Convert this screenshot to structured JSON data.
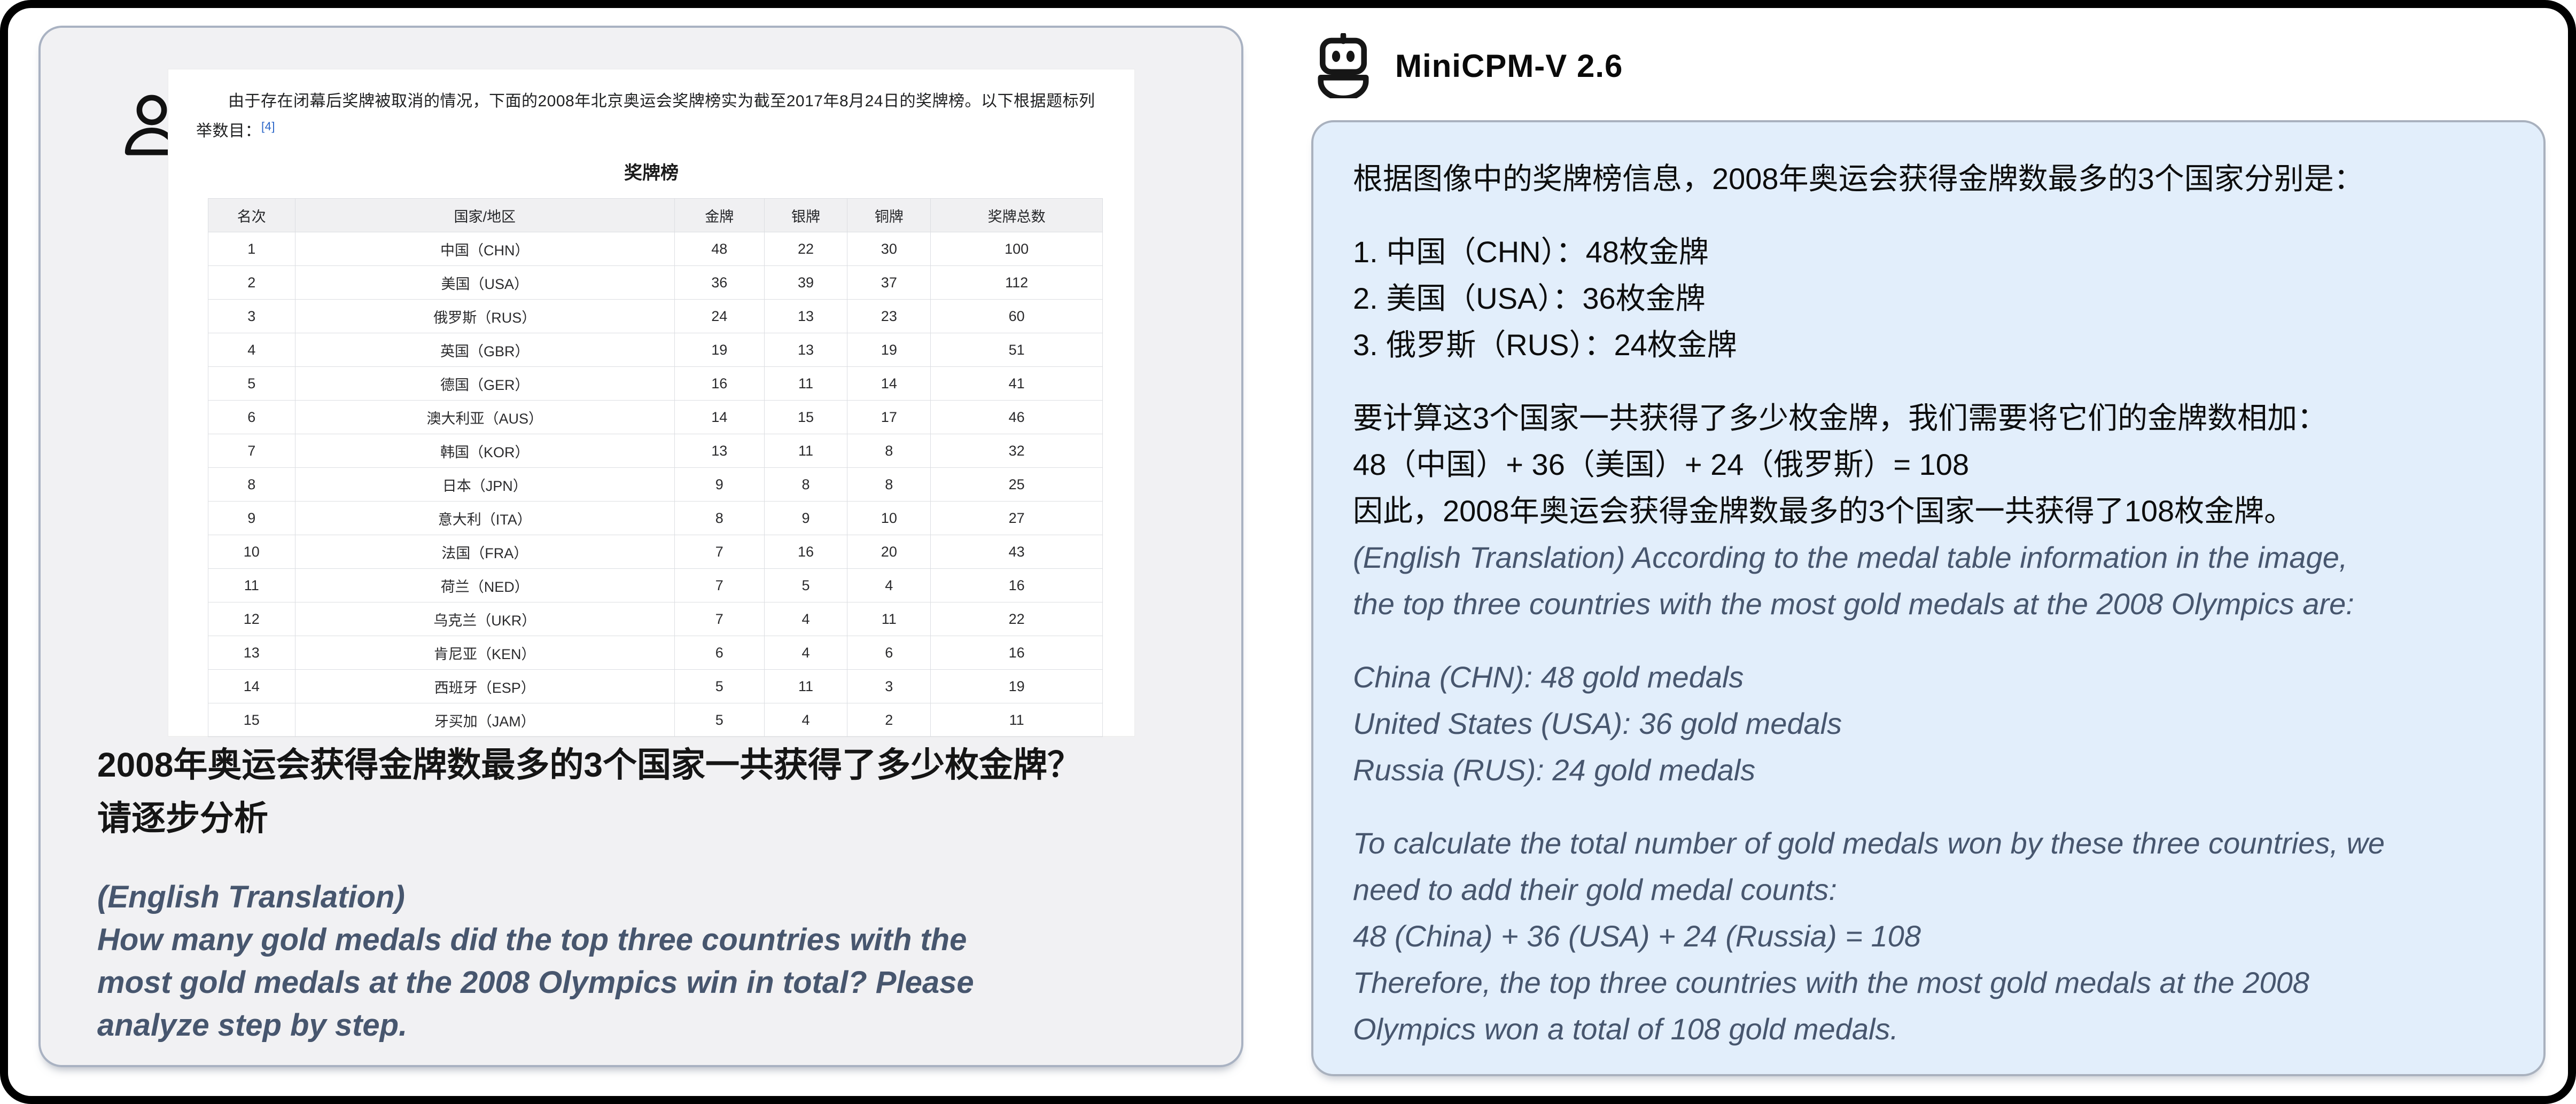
{
  "colors": {
    "frame": "#000000",
    "user_panel_bg": "#f1f1f3",
    "user_panel_border": "#a9b2c2",
    "bubble_bg": "#e2eefb",
    "bubble_border": "#a9b1be",
    "translation_text": "#47566e",
    "citation_link": "#2a66c8",
    "table_header_bg": "#f0f0f2",
    "table_border": "#dcdee2"
  },
  "icons": {
    "user": "user-icon",
    "assistant": "robot-icon"
  },
  "user": {
    "screenshot": {
      "intro": "由于存在闭幕后奖牌被取消的情况，下面的2008年北京奥运会奖牌榜实为截至2017年8月24日的奖牌榜。以下根据题标列举数目：",
      "ref_marker": "[4]",
      "table_title": "奖牌榜",
      "columns": [
        "名次",
        "国家/地区",
        "金牌",
        "银牌",
        "铜牌",
        "奖牌总数"
      ],
      "rows": [
        [
          "1",
          "中国（CHN）",
          "48",
          "22",
          "30",
          "100"
        ],
        [
          "2",
          "美国（USA）",
          "36",
          "39",
          "37",
          "112"
        ],
        [
          "3",
          "俄罗斯（RUS）",
          "24",
          "13",
          "23",
          "60"
        ],
        [
          "4",
          "英国（GBR）",
          "19",
          "13",
          "19",
          "51"
        ],
        [
          "5",
          "德国（GER）",
          "16",
          "11",
          "14",
          "41"
        ],
        [
          "6",
          "澳大利亚（AUS）",
          "14",
          "15",
          "17",
          "46"
        ],
        [
          "7",
          "韩国（KOR）",
          "13",
          "11",
          "8",
          "32"
        ],
        [
          "8",
          "日本（JPN）",
          "9",
          "8",
          "8",
          "25"
        ],
        [
          "9",
          "意大利（ITA）",
          "8",
          "9",
          "10",
          "27"
        ],
        [
          "10",
          "法国（FRA）",
          "7",
          "16",
          "20",
          "43"
        ],
        [
          "11",
          "荷兰（NED）",
          "7",
          "5",
          "4",
          "16"
        ],
        [
          "12",
          "乌克兰（UKR）",
          "7",
          "4",
          "11",
          "22"
        ],
        [
          "13",
          "肯尼亚（KEN）",
          "6",
          "4",
          "6",
          "16"
        ],
        [
          "14",
          "西班牙（ESP）",
          "5",
          "11",
          "3",
          "19"
        ],
        [
          "15",
          "牙买加（JAM）",
          "5",
          "4",
          "2",
          "11"
        ]
      ]
    },
    "question_zh_lines": [
      "2008年奥运会获得金牌数最多的3个国家一共获得了多少枚金牌？",
      "请逐步分析"
    ],
    "translation_heading": "(English Translation)",
    "question_en_lines": [
      "How many gold medals did the top three countries with the",
      "most gold medals at the 2008 Olympics win in total? Please",
      "analyze step by step."
    ]
  },
  "assistant": {
    "model_name": "MiniCPM-V 2.6",
    "answer_zh_paragraphs": [
      [
        "根据图像中的奖牌榜信息，2008年奥运会获得金牌数最多的3个国家分别是："
      ],
      [
        "1. 中国（CHN）：48枚金牌",
        "2. 美国（USA）：36枚金牌",
        "3. 俄罗斯（RUS）：24枚金牌"
      ],
      [
        "要计算这3个国家一共获得了多少枚金牌，我们需要将它们的金牌数相加：",
        "48（中国）+ 36（美国）+ 24（俄罗斯）= 108",
        "因此，2008年奥运会获得金牌数最多的3个国家一共获得了108枚金牌。"
      ]
    ],
    "answer_en_paragraphs": [
      [
        "(English Translation) According to the medal table information in the image,",
        "the top three countries with the most gold medals at the 2008 Olympics are:"
      ],
      [
        "China (CHN): 48 gold medals",
        "United States (USA): 36 gold medals",
        "Russia (RUS): 24 gold medals"
      ],
      [
        "To calculate the total number of gold medals won by these three countries, we",
        "need to add their gold medal counts:",
        "48 (China) + 36 (USA) + 24 (Russia) = 108",
        "Therefore, the top three countries with the most gold medals at the 2008",
        "Olympics won a total of 108 gold medals."
      ]
    ]
  }
}
